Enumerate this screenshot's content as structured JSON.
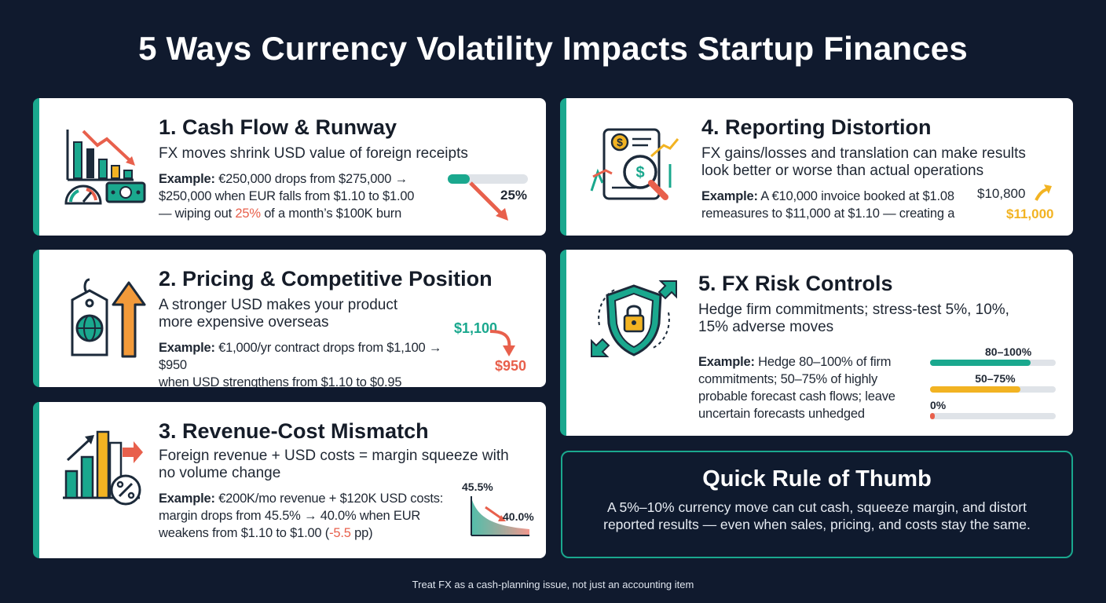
{
  "title": "5 Ways Currency Volatility Impacts Startup Finances",
  "colors": {
    "teal": "#1aa88e",
    "red": "#e8604c",
    "gold": "#f2b322",
    "navy": "#101a2e"
  },
  "cards": {
    "c1": {
      "heading": "1. Cash Flow & Runway",
      "sub": "FX moves shrink USD value of foreign receipts",
      "ex_label": "Example:",
      "ex_a": " €250,000 drops from $275,000 →",
      "ex_b": "$250,000 when EUR falls from $1.10 to $1.00",
      "ex_c1": "— wiping out ",
      "ex_pct": "25%",
      "ex_c2": " of a month’s $100K burn",
      "graphic_label": "25%",
      "icons": [
        "bar-chart-down-icon",
        "speedometer-icon",
        "cash-icon"
      ]
    },
    "c2": {
      "heading": "2. Pricing & Competitive Position",
      "sub_a": "A stronger USD makes your product",
      "sub_b": "more expensive overseas",
      "ex_label": "Example:",
      "ex_a": " €1,000/yr contract drops from $1,100 → $950",
      "ex_b": "when USD strengthens from $1.10 to $0.95",
      "price_from": "$1,100",
      "price_to": "$950",
      "icons": [
        "price-tag-globe-icon",
        "arrow-up-icon"
      ]
    },
    "c3": {
      "heading": "3. Revenue-Cost Mismatch",
      "sub_a": "Foreign revenue + USD costs = margin squeeze with",
      "sub_b": "no volume change",
      "ex_label": "Example:",
      "ex_a": " €200K/mo revenue + $120K USD costs:",
      "ex_b": "margin drops from 45.5% → 40.0% when EUR",
      "ex_c1": "weakens from $1.10 to $1.00 (",
      "ex_pp": "-5.5",
      "ex_c2": " pp)",
      "margin_from": "45.5%",
      "margin_to": "40.0%",
      "icons": [
        "bar-chart-up-icon",
        "percent-icon"
      ]
    },
    "c4": {
      "heading": "4. Reporting Distortion",
      "sub_a": "FX gains/losses and translation can make results",
      "sub_b": "look better or worse than actual operations",
      "ex_label": "Example:",
      "ex_a": " A €10,000 invoice booked at $1.08",
      "ex_b": "remeasures to $11,000 at $1.10 — creating a",
      "value_from": "$10,800",
      "value_to": "$11,000",
      "icons": [
        "report-magnifier-icon"
      ]
    },
    "c5": {
      "heading": "5. FX Risk Controls",
      "sub_a": "Hedge firm commitments; stress-test 5%, 10%,",
      "sub_b": "15% adverse moves",
      "ex_label": "Example:",
      "ex_a": " Hedge 80–100% of firm",
      "ex_b": "commitments; 50–75% of highly",
      "ex_c": "probable forecast cash flows; leave",
      "ex_d": "uncertain forecasts unhedged",
      "bars": [
        {
          "label": "80–100%",
          "value": 0.8,
          "color": "#1aa88e"
        },
        {
          "label": "50–75%",
          "value": 0.72,
          "color": "#f2b322"
        },
        {
          "label": "0%",
          "value": 0.0,
          "color": "#e8604c"
        }
      ],
      "icons": [
        "shield-lock-icon"
      ]
    }
  },
  "quick_rule": {
    "heading": "Quick Rule of Thumb",
    "line_a": "A 5%–10% currency move can cut cash, squeeze margin, and distort",
    "line_b": "reported results — even when sales, pricing, and costs stay the same."
  },
  "footer": "Treat FX as a cash-planning issue, not just an accounting item"
}
